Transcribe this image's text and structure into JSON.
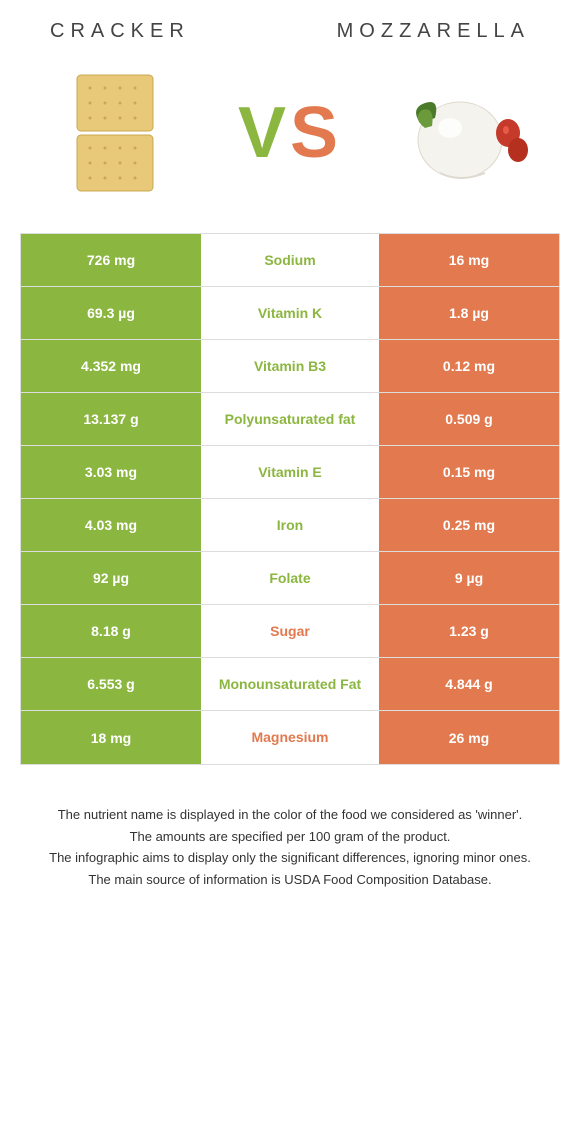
{
  "colors": {
    "left": "#8bb63f",
    "right": "#e2794f",
    "border": "#dddddd",
    "text": "#333333",
    "white": "#ffffff"
  },
  "header": {
    "left_title": "Cracker",
    "right_title": "Mozzarella"
  },
  "vs": {
    "v": "V",
    "s": "S"
  },
  "rows": [
    {
      "left": "726 mg",
      "label": "Sodium",
      "right": "16 mg",
      "winner": "left"
    },
    {
      "left": "69.3 µg",
      "label": "Vitamin K",
      "right": "1.8 µg",
      "winner": "left"
    },
    {
      "left": "4.352 mg",
      "label": "Vitamin B3",
      "right": "0.12 mg",
      "winner": "left"
    },
    {
      "left": "13.137 g",
      "label": "Polyunsaturated fat",
      "right": "0.509 g",
      "winner": "left"
    },
    {
      "left": "3.03 mg",
      "label": "Vitamin E",
      "right": "0.15 mg",
      "winner": "left"
    },
    {
      "left": "4.03 mg",
      "label": "Iron",
      "right": "0.25 mg",
      "winner": "left"
    },
    {
      "left": "92 µg",
      "label": "Folate",
      "right": "9 µg",
      "winner": "left"
    },
    {
      "left": "8.18 g",
      "label": "Sugar",
      "right": "1.23 g",
      "winner": "right"
    },
    {
      "left": "6.553 g",
      "label": "Monounsaturated Fat",
      "right": "4.844 g",
      "winner": "left"
    },
    {
      "left": "18 mg",
      "label": "Magnesium",
      "right": "26 mg",
      "winner": "right"
    }
  ],
  "footnotes": [
    "The nutrient name is displayed in the color of the food we considered as 'winner'.",
    "The amounts are specified per 100 gram of the product.",
    "The infographic aims to display only the significant differences, ignoring minor ones.",
    "The main source of information is USDA Food Composition Database."
  ]
}
